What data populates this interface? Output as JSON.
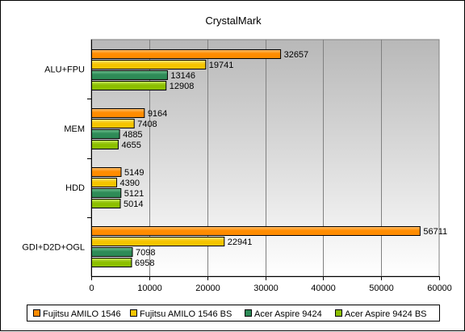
{
  "chart_data": {
    "type": "bar",
    "orientation": "horizontal",
    "title": "CrystalMark",
    "xlabel": "",
    "ylabel": "",
    "categories": [
      "ALU+FPU",
      "MEM",
      "HDD",
      "GDI+D2D+OGL"
    ],
    "series": [
      {
        "name": "Fujitsu AMILO 1546",
        "values": [
          32657,
          9164,
          5149,
          56711
        ]
      },
      {
        "name": "Fujitsu AMILO 1546 BS",
        "values": [
          19741,
          7408,
          4390,
          22941
        ]
      },
      {
        "name": "Acer Aspire 9424",
        "values": [
          13146,
          4885,
          5121,
          7098
        ]
      },
      {
        "name": "Acer Aspire 9424 BS",
        "values": [
          12908,
          4655,
          5014,
          6958
        ]
      }
    ],
    "xlim": [
      0,
      60000
    ],
    "xticks": [
      "0",
      "10000",
      "20000",
      "30000",
      "40000",
      "50000",
      "60000"
    ],
    "grid": true,
    "legend_position": "bottom",
    "colors": {
      "series": [
        "#ff8c00",
        "#f5c400",
        "#2e8b57",
        "#8cbf00"
      ],
      "series_light": [
        "#ffc070",
        "#ffe680",
        "#70c090",
        "#c8e860"
      ],
      "plot_background_top": "#b8b8b8",
      "plot_background_bottom": "#ffffff"
    }
  }
}
